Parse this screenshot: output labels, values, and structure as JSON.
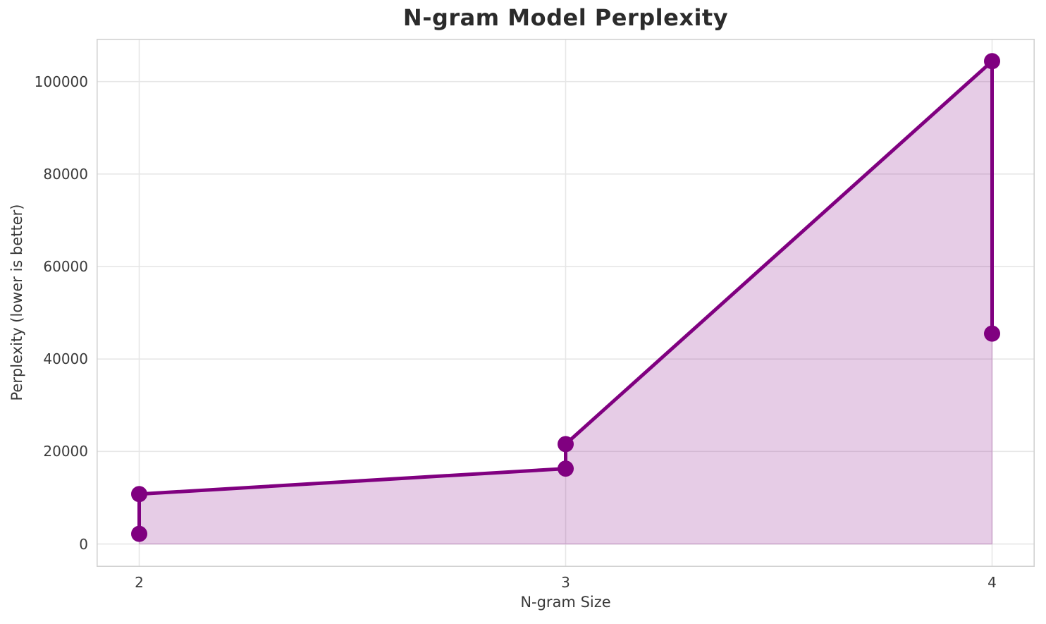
{
  "chart_data": {
    "type": "area",
    "title": "N-gram Model Perplexity",
    "xlabel": "N-gram Size",
    "ylabel": "Perplexity (lower is better)",
    "x": [
      2,
      2,
      3,
      3,
      4,
      4
    ],
    "y": [
      2200,
      10800,
      16300,
      21600,
      104400,
      45500
    ],
    "baseline": 0,
    "xticks": [
      2,
      3,
      4
    ],
    "xtick_labels": [
      "2",
      "3",
      "4"
    ],
    "yticks": [
      0,
      20000,
      40000,
      60000,
      80000,
      100000
    ],
    "ytick_labels": [
      "0",
      "20000",
      "40000",
      "60000",
      "80000",
      "100000"
    ],
    "xlim": [
      1.9,
      4.1
    ],
    "ylim": [
      -4950,
      109250
    ],
    "grid": true,
    "legend": null,
    "style": {
      "line_color": "#800080",
      "marker_color": "#800080",
      "fill_alpha": 0.2,
      "line_width": 5,
      "marker_radius": 11.5,
      "grid_color": "#e6e6e6",
      "spine_color": "#d2d2d2",
      "background": "#ffffff",
      "title_color": "#2b2b2b",
      "tick_color": "#3a3a3a"
    }
  }
}
